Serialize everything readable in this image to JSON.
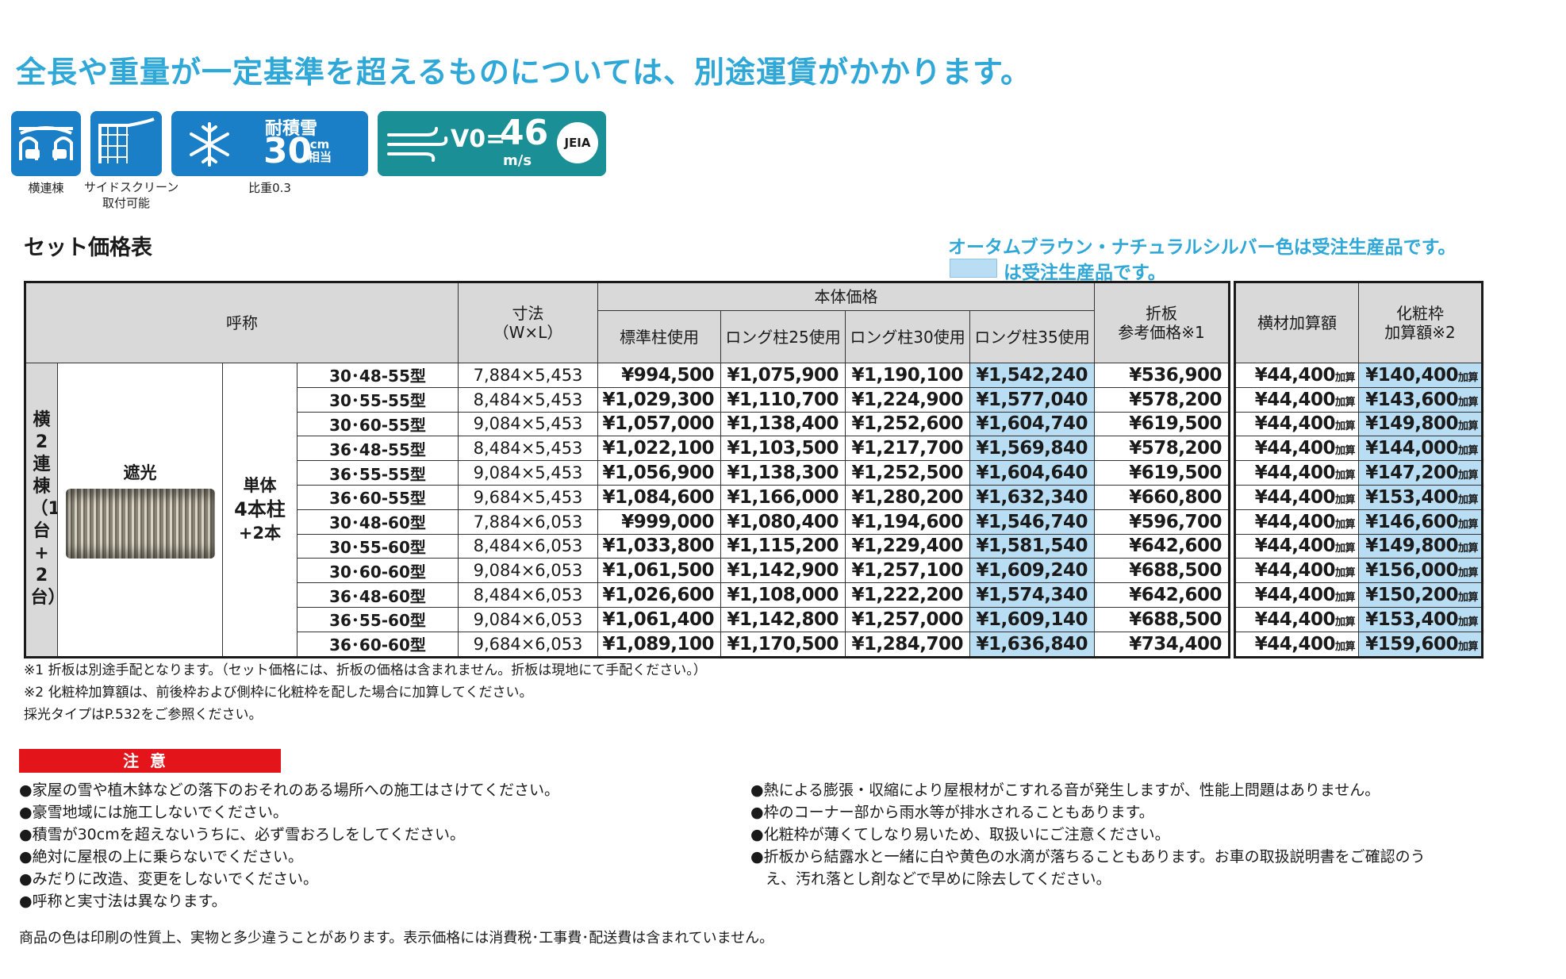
{
  "headline": "全長や重量が一定基準を超えるものについては、別途運賃がかかります。",
  "icons": {
    "horizontal_caption": "横連棟",
    "screen_caption_1": "サイドスクリーン",
    "screen_caption_2": "取付可能",
    "snow_label": "耐積雪",
    "snow_value": "30",
    "snow_unit_top": "cm",
    "snow_unit_bottom": "相当",
    "snow_caption": "比重0.3",
    "wind_v": "V0=",
    "wind_value": "46",
    "wind_unit": "m/s",
    "wind_badge": "JEIA",
    "snow_color": "#1a7fc6",
    "wind_color": "#1a8f96"
  },
  "section_title": "セット価格表",
  "notice_1": "オータムブラウン・ナチュラルシルバー色は受注生産品です。",
  "notice_2": "は受注生産品です。",
  "table": {
    "headers": {
      "name": "呼称",
      "size_1": "寸法",
      "size_2": "（W×L）",
      "body_price": "本体価格",
      "std": "標準柱使用",
      "l25": "ロング柱25使用",
      "l30": "ロング柱30使用",
      "l35": "ロング柱35使用",
      "fold_1": "折板",
      "fold_2": "参考価格※1",
      "beam": "横材加算額",
      "deco_1": "化粧枠",
      "deco_2": "加算額※2"
    },
    "group_label": "横2連棟（1台+2台）",
    "roof_type": "遮光",
    "post_1": "単体",
    "post_2": "4本柱",
    "post_3": "+2本",
    "suffix": "加算",
    "rows": [
      {
        "model": "30･48-55型",
        "size": "7,884×5,453",
        "std": "¥994,500",
        "l25": "¥1,075,900",
        "l30": "¥1,190,100",
        "l35": "¥1,542,240",
        "fold": "¥536,900",
        "beam": "¥44,400",
        "deco": "¥140,400"
      },
      {
        "model": "30･55-55型",
        "size": "8,484×5,453",
        "std": "¥1,029,300",
        "l25": "¥1,110,700",
        "l30": "¥1,224,900",
        "l35": "¥1,577,040",
        "fold": "¥578,200",
        "beam": "¥44,400",
        "deco": "¥143,600"
      },
      {
        "model": "30･60-55型",
        "size": "9,084×5,453",
        "std": "¥1,057,000",
        "l25": "¥1,138,400",
        "l30": "¥1,252,600",
        "l35": "¥1,604,740",
        "fold": "¥619,500",
        "beam": "¥44,400",
        "deco": "¥149,800"
      },
      {
        "model": "36･48-55型",
        "size": "8,484×5,453",
        "std": "¥1,022,100",
        "l25": "¥1,103,500",
        "l30": "¥1,217,700",
        "l35": "¥1,569,840",
        "fold": "¥578,200",
        "beam": "¥44,400",
        "deco": "¥144,000"
      },
      {
        "model": "36･55-55型",
        "size": "9,084×5,453",
        "std": "¥1,056,900",
        "l25": "¥1,138,300",
        "l30": "¥1,252,500",
        "l35": "¥1,604,640",
        "fold": "¥619,500",
        "beam": "¥44,400",
        "deco": "¥147,200"
      },
      {
        "model": "36･60-55型",
        "size": "9,684×5,453",
        "std": "¥1,084,600",
        "l25": "¥1,166,000",
        "l30": "¥1,280,200",
        "l35": "¥1,632,340",
        "fold": "¥660,800",
        "beam": "¥44,400",
        "deco": "¥153,400"
      },
      {
        "model": "30･48-60型",
        "size": "7,884×6,053",
        "std": "¥999,000",
        "l25": "¥1,080,400",
        "l30": "¥1,194,600",
        "l35": "¥1,546,740",
        "fold": "¥596,700",
        "beam": "¥44,400",
        "deco": "¥146,600"
      },
      {
        "model": "30･55-60型",
        "size": "8,484×6,053",
        "std": "¥1,033,800",
        "l25": "¥1,115,200",
        "l30": "¥1,229,400",
        "l35": "¥1,581,540",
        "fold": "¥642,600",
        "beam": "¥44,400",
        "deco": "¥149,800"
      },
      {
        "model": "30･60-60型",
        "size": "9,084×6,053",
        "std": "¥1,061,500",
        "l25": "¥1,142,900",
        "l30": "¥1,257,100",
        "l35": "¥1,609,240",
        "fold": "¥688,500",
        "beam": "¥44,400",
        "deco": "¥156,000"
      },
      {
        "model": "36･48-60型",
        "size": "8,484×6,053",
        "std": "¥1,026,600",
        "l25": "¥1,108,000",
        "l30": "¥1,222,200",
        "l35": "¥1,574,340",
        "fold": "¥642,600",
        "beam": "¥44,400",
        "deco": "¥150,200"
      },
      {
        "model": "36･55-60型",
        "size": "9,084×6,053",
        "std": "¥1,061,400",
        "l25": "¥1,142,800",
        "l30": "¥1,257,000",
        "l35": "¥1,609,140",
        "fold": "¥688,500",
        "beam": "¥44,400",
        "deco": "¥153,400"
      },
      {
        "model": "36･60-60型",
        "size": "9,684×6,053",
        "std": "¥1,089,100",
        "l25": "¥1,170,500",
        "l30": "¥1,284,700",
        "l35": "¥1,636,840",
        "fold": "¥734,400",
        "beam": "¥44,400",
        "deco": "¥159,600"
      }
    ]
  },
  "footnotes": [
    "※1 折板は別途手配となります。（セット価格には、折板の価格は含まれません。折板は現地にて手配ください。）",
    "※2 化粧枠加算額は、前後枠および側枠に化粧枠を配した場合に加算してください。",
    "採光タイプはP.532をご参照ください。"
  ],
  "caution_title": "注意",
  "caution_left": [
    "●家屋の雪や植木鉢などの落下のおそれのある場所への施工はさけてください。",
    "●豪雪地域には施工しないでください。",
    "●積雪が30cmを超えないうちに、必ず雪おろしをしてください。",
    "●絶対に屋根の上に乗らないでください。",
    "●みだりに改造、変更をしないでください。",
    "●呼称と実寸法は異なります。"
  ],
  "caution_right": [
    "●熱による膨張・収縮により屋根材がこすれる音が発生しますが、性能上問題はありません。",
    "●枠のコーナー部から雨水等が排水されることもあります。",
    "●化粧枠が薄くてしなり易いため、取扱いにご注意ください。",
    "●折板から結露水と一緒に白や黄色の水滴が落ちることもあります。お車の取扱説明書をご確認のう",
    "　え、汚れ落とし剤などで早めに除去してください。"
  ],
  "bottom_note": "商品の色は印刷の性質上、実物と多少違うことがあります。表示価格には消費税･工事費･配送費は含まれていません。"
}
